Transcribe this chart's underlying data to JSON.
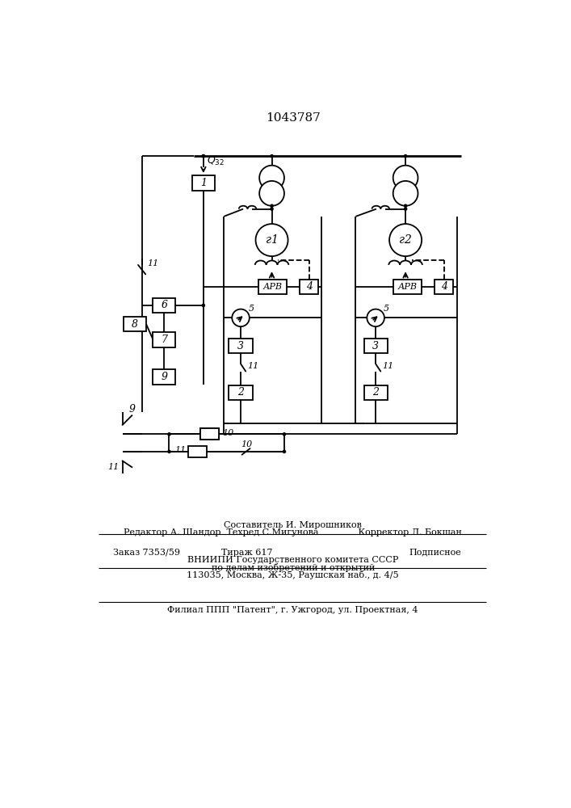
{
  "title": "1043787",
  "bg": "#ffffff",
  "footer": {
    "l1": "Составитель И. Мирошников",
    "l2": "Редактор А. Шандор  Техред С.Мигунова              Корректор Л. Бокшан",
    "l3a": "Заказ 7353/59",
    "l3b": "Тираж 617",
    "l3c": "Подписное",
    "l4": "ВНИИПИ Государственного комитета СССР",
    "l5": "по делам изобретений и открытий",
    "l6": "113035, Москва, Ж-35, Раушская наб., д. 4/5",
    "l7": "Филиал ППП \"Патент\", г. Ужгород, ул. Проектная, 4"
  },
  "lw": 1.3,
  "lw_bus": 2.0,
  "lw_thin": 0.8
}
